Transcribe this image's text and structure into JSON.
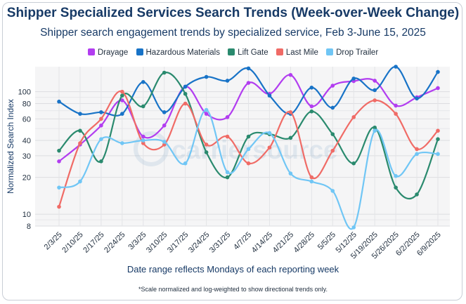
{
  "chart_data": {
    "type": "line",
    "title": "Shipper Specialized Services Search Trends (Week-over-Week Change)",
    "subtitle": "Shipper search engagement trends by specialized service, Feb 3-June 15, 2025",
    "xlabel": "Date range reflects Mondays of each reporting week",
    "ylabel": "Normalized Search Index",
    "footnote": "*Scale normalized and log-weighted to show directional trends only.",
    "y_scale": "log",
    "ylim": [
      8,
      160
    ],
    "y_ticks": [
      8,
      10,
      20,
      30,
      40,
      60,
      80,
      100
    ],
    "grid": true,
    "legend_position": "top-center",
    "categories": [
      "2/3/25",
      "2/10/25",
      "2/17/25",
      "2/24/25",
      "3/3/25",
      "3/10/25",
      "3/17/25",
      "3/24/25",
      "3/31/25",
      "4/7/25",
      "4/14/25",
      "4/21/25",
      "4/28/25",
      "5/5/25",
      "5/12/25",
      "5/19/2025",
      "5/26/2025",
      "6/2/2025",
      "6/9/2025"
    ],
    "series": [
      {
        "name": "Drayage",
        "color": "#b23df0",
        "values": [
          27,
          37,
          53,
          85,
          43,
          53,
          110,
          66,
          62,
          118,
          96,
          137,
          76,
          112,
          122,
          123,
          77,
          90,
          107
        ]
      },
      {
        "name": "Hazardous Materials",
        "color": "#1873c7",
        "values": [
          83,
          66,
          68,
          66,
          120,
          68,
          110,
          132,
          123,
          155,
          93,
          66,
          108,
          74,
          128,
          103,
          160,
          88,
          145
        ]
      },
      {
        "name": "Lift Gate",
        "color": "#2a8a6e",
        "values": [
          33,
          48,
          27,
          93,
          76,
          143,
          96,
          32,
          20,
          43,
          45,
          42,
          69,
          45,
          26,
          51,
          16.5,
          14.5,
          41
        ]
      },
      {
        "name": "Last Mile",
        "color": "#f06b66",
        "values": [
          11.5,
          38,
          60,
          100,
          38,
          37,
          80,
          37,
          43,
          26,
          35,
          68,
          20,
          33,
          62,
          85,
          66,
          34,
          48
        ]
      },
      {
        "name": "Drop Trailer",
        "color": "#70c6f5",
        "values": [
          16.5,
          18.5,
          41,
          38,
          40,
          39,
          26,
          71,
          22,
          34,
          46,
          21.5,
          18.5,
          15.5,
          7.8,
          48,
          20.5,
          31,
          31
        ]
      }
    ]
  },
  "watermark": "carriersource"
}
